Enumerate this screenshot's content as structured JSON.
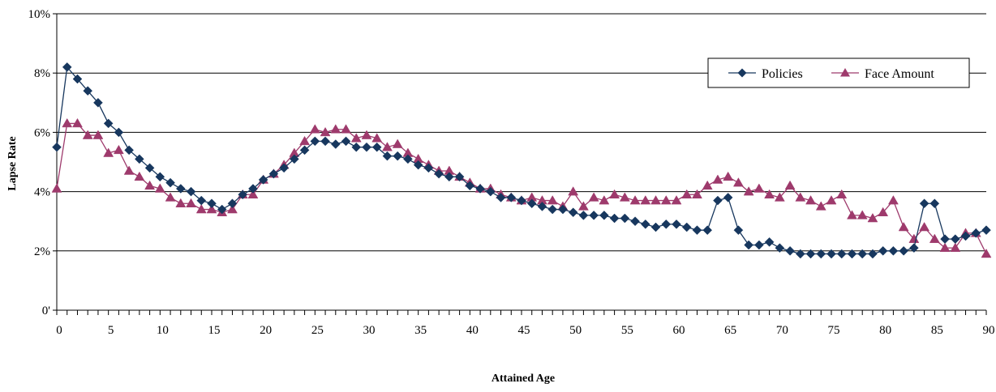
{
  "chart_data": {
    "type": "line",
    "xlabel": "Attained Age",
    "ylabel": "Lapse Rate",
    "xlim": [
      0,
      90
    ],
    "ylim": [
      0,
      10
    ],
    "x_ticks": [
      "0",
      "5",
      "10",
      "15",
      "20",
      "25",
      "30",
      "35",
      "40",
      "45",
      "50",
      "55",
      "60",
      "65",
      "70",
      "75",
      "80",
      "85",
      "90"
    ],
    "y_ticks": [
      "0'",
      "2%",
      "4%",
      "6%",
      "8%",
      "10%"
    ],
    "grid": "horizontal",
    "legend_position": "top-right",
    "x": [
      0,
      1,
      2,
      3,
      4,
      5,
      6,
      7,
      8,
      9,
      10,
      11,
      12,
      13,
      14,
      15,
      16,
      17,
      18,
      19,
      20,
      21,
      22,
      23,
      24,
      25,
      26,
      27,
      28,
      29,
      30,
      31,
      32,
      33,
      34,
      35,
      36,
      37,
      38,
      39,
      40,
      41,
      42,
      43,
      44,
      45,
      46,
      47,
      48,
      49,
      50,
      51,
      52,
      53,
      54,
      55,
      56,
      57,
      58,
      59,
      60,
      61,
      62,
      63,
      64,
      65,
      66,
      67,
      68,
      69,
      70,
      71,
      72,
      73,
      74,
      75,
      76,
      77,
      78,
      79,
      80,
      81,
      82,
      83,
      84,
      85,
      86,
      87,
      88,
      89,
      90
    ],
    "series": [
      {
        "name": "Policies",
        "color": "#17375E",
        "marker": "diamond",
        "values": [
          5.5,
          8.2,
          7.8,
          7.4,
          7.0,
          6.3,
          6.0,
          5.4,
          5.1,
          4.8,
          4.5,
          4.3,
          4.1,
          4.0,
          3.7,
          3.6,
          3.4,
          3.6,
          3.9,
          4.1,
          4.4,
          4.6,
          4.8,
          5.1,
          5.4,
          5.7,
          5.7,
          5.6,
          5.7,
          5.5,
          5.5,
          5.5,
          5.2,
          5.2,
          5.1,
          4.9,
          4.8,
          4.6,
          4.5,
          4.5,
          4.2,
          4.1,
          4.0,
          3.8,
          3.8,
          3.7,
          3.6,
          3.5,
          3.4,
          3.4,
          3.3,
          3.2,
          3.2,
          3.2,
          3.1,
          3.1,
          3.0,
          2.9,
          2.8,
          2.9,
          2.9,
          2.8,
          2.7,
          2.7,
          3.7,
          3.8,
          2.7,
          2.2,
          2.2,
          2.3,
          2.1,
          2.0,
          1.9,
          1.9,
          1.9,
          1.9,
          1.9,
          1.9,
          1.9,
          1.9,
          2.0,
          2.0,
          2.0,
          2.1,
          3.6,
          3.6,
          2.4,
          2.4,
          2.5,
          2.6,
          2.7
        ]
      },
      {
        "name": "Face Amount",
        "color": "#9E3A6C",
        "marker": "triangle",
        "values": [
          4.1,
          6.3,
          6.3,
          5.9,
          5.9,
          5.3,
          5.4,
          4.7,
          4.5,
          4.2,
          4.1,
          3.8,
          3.6,
          3.6,
          3.4,
          3.4,
          3.3,
          3.4,
          3.9,
          3.9,
          4.4,
          4.6,
          4.9,
          5.3,
          5.7,
          6.1,
          6.0,
          6.1,
          6.1,
          5.8,
          5.9,
          5.8,
          5.5,
          5.6,
          5.3,
          5.1,
          4.9,
          4.7,
          4.7,
          4.5,
          4.3,
          4.1,
          4.1,
          3.9,
          3.8,
          3.7,
          3.8,
          3.7,
          3.7,
          3.5,
          4.0,
          3.5,
          3.8,
          3.7,
          3.9,
          3.8,
          3.7,
          3.7,
          3.7,
          3.7,
          3.7,
          3.9,
          3.9,
          4.2,
          4.4,
          4.5,
          4.3,
          4.0,
          4.1,
          3.9,
          3.8,
          4.2,
          3.8,
          3.7,
          3.5,
          3.7,
          3.9,
          3.2,
          3.2,
          3.1,
          3.3,
          3.7,
          2.8,
          2.4,
          2.8,
          2.4,
          2.1,
          2.1,
          2.6,
          2.6,
          1.9
        ]
      }
    ]
  }
}
